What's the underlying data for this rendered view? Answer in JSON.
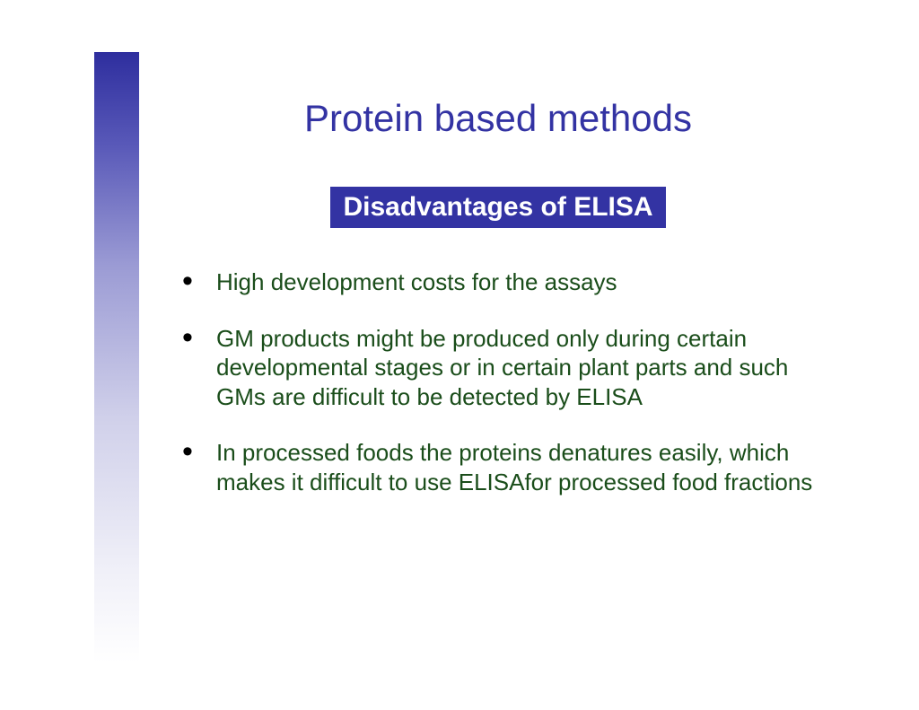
{
  "colors": {
    "title_color": "#3333a3",
    "subtitle_bg": "#3333a3",
    "subtitle_text": "#ffffff",
    "bullet_text": "#1a4d1a",
    "gradient_start": "#2e2e9e",
    "gradient_end": "#ffffff"
  },
  "title": "Protein based methods",
  "subtitle": "Disadvantages of ELISA",
  "bullets": [
    "High development costs for the assays",
    "GM products might be produced only during certain developmental stages or in certain plant parts and such GMs are difficult to be detected by ELISA",
    "In processed foods the proteins denatures easily, which makes it difficult to   use ELISAfor processed food fractions"
  ],
  "typography": {
    "title_fontsize": 42,
    "subtitle_fontsize": 30,
    "bullet_fontsize": 26
  }
}
